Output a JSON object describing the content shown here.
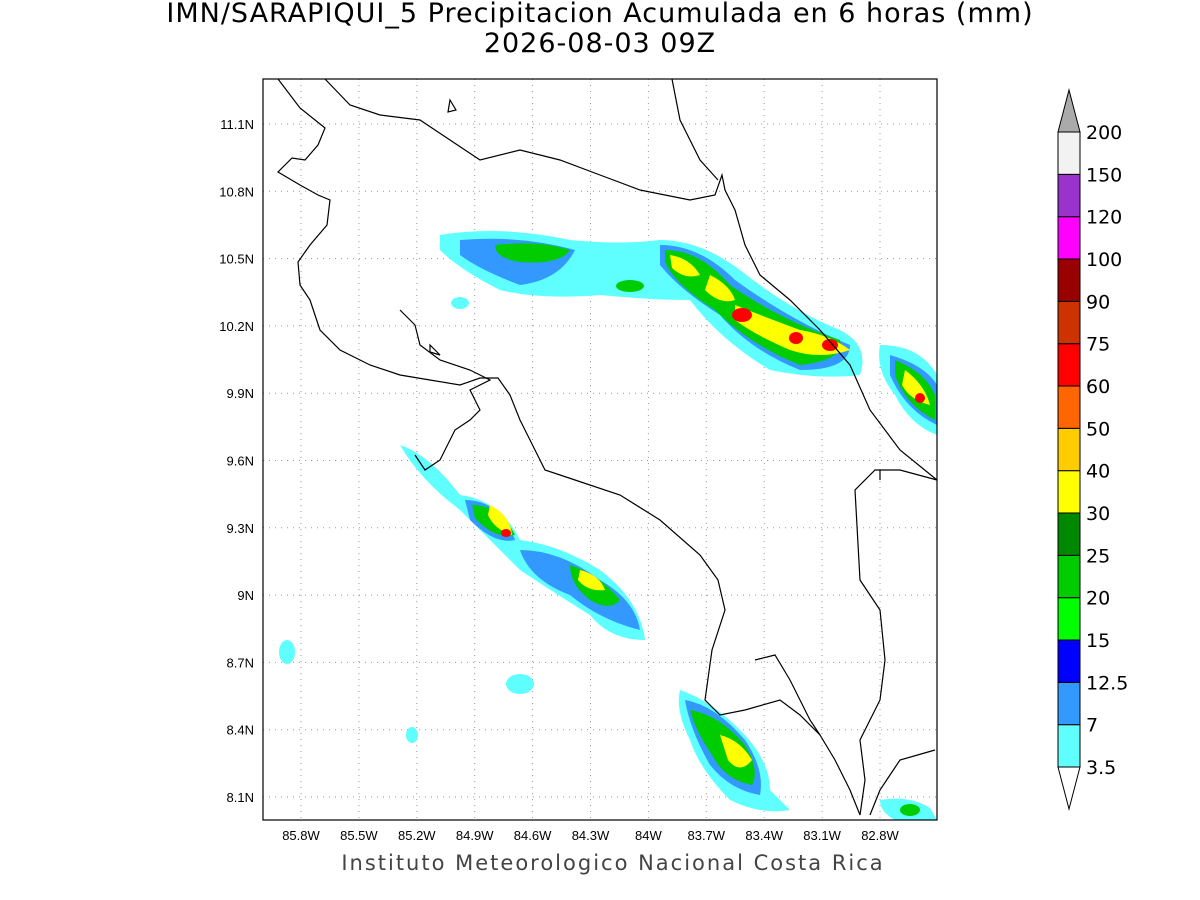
{
  "map": {
    "title": "IMN/SARAPIQUI_5 Precipitacion Acumulada en 6 horas (mm)",
    "subtitle": "2026-08-03 09Z",
    "lon_labels": [
      "85.8W",
      "85.5W",
      "85.2W",
      "84.9W",
      "84.6W",
      "84.3W",
      "84W",
      "83.7W",
      "83.4W",
      "83.1W",
      "82.8W"
    ],
    "lat_labels": [
      "11.1N",
      "10.8N",
      "10.5N",
      "10.2N",
      "9.9N",
      "9.6N",
      "9.3N",
      "9N",
      "8.7N",
      "8.4N",
      "8.1N"
    ],
    "colorbar": {
      "levels": [
        3.5,
        7,
        12.5,
        15,
        20,
        25,
        30,
        40,
        50,
        60,
        75,
        90,
        100,
        120,
        150,
        200
      ],
      "colors": [
        "#60ffff",
        "#3399ff",
        "#0000ff",
        "#00ff00",
        "#00cc00",
        "#008800",
        "#ffff00",
        "#ffcc00",
        "#ff6600",
        "#ff0000",
        "#cc3300",
        "#990000",
        "#ff00ff",
        "#9933cc",
        "#f2f2f2"
      ],
      "over_color": "#aaaaaa",
      "under_color": "#ffffff"
    },
    "credit": "Instituto Meteorologico Nacional Costa Rica"
  }
}
